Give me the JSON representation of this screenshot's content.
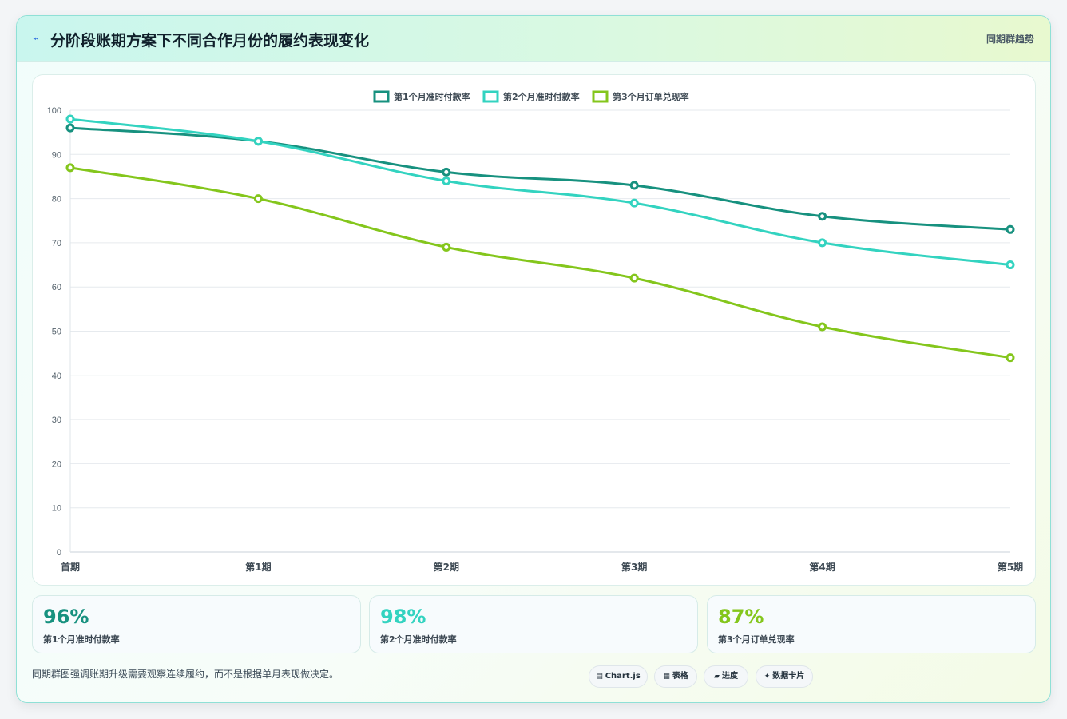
{
  "header": {
    "title": "分阶段账期方案下不同合作月份的履约表现变化",
    "tag": "同期群趋势"
  },
  "chart_data": {
    "type": "line",
    "categories": [
      "首期",
      "第1期",
      "第2期",
      "第3期",
      "第4期",
      "第5期"
    ],
    "series": [
      {
        "name": "第1个月准时付款率",
        "color": "#17917f",
        "values": [
          96,
          93,
          86,
          83,
          76,
          73
        ]
      },
      {
        "name": "第2个月准时付款率",
        "color": "#33d3c0",
        "values": [
          98,
          93,
          84,
          79,
          70,
          65
        ]
      },
      {
        "name": "第3个月订单兑现率",
        "color": "#84c61c",
        "values": [
          87,
          80,
          69,
          62,
          51,
          44
        ]
      }
    ],
    "ylim": [
      0,
      100
    ],
    "yticks": [
      0,
      10,
      20,
      30,
      40,
      50,
      60,
      70,
      80,
      90,
      100
    ],
    "grid": true,
    "legend_position": "top-center"
  },
  "kpis": [
    {
      "value": "96%",
      "label": "第1个月准时付款率",
      "color": "#17917f"
    },
    {
      "value": "98%",
      "label": "第2个月准时付款率",
      "color": "#33d3c0"
    },
    {
      "value": "87%",
      "label": "第3个月订单兑现率",
      "color": "#84c61c"
    }
  ],
  "note": "同期群图强调账期升级需要观察连续履约，而不是根据单月表现做决定。",
  "chips": [
    {
      "icon": "chart-icon",
      "glyph": "▤",
      "label": "Chart.js"
    },
    {
      "icon": "table-icon",
      "glyph": "▦",
      "label": "表格"
    },
    {
      "icon": "progress-icon",
      "glyph": "▰",
      "label": "进度"
    },
    {
      "icon": "sparkle-icon",
      "glyph": "✦",
      "label": "数据卡片"
    }
  ]
}
